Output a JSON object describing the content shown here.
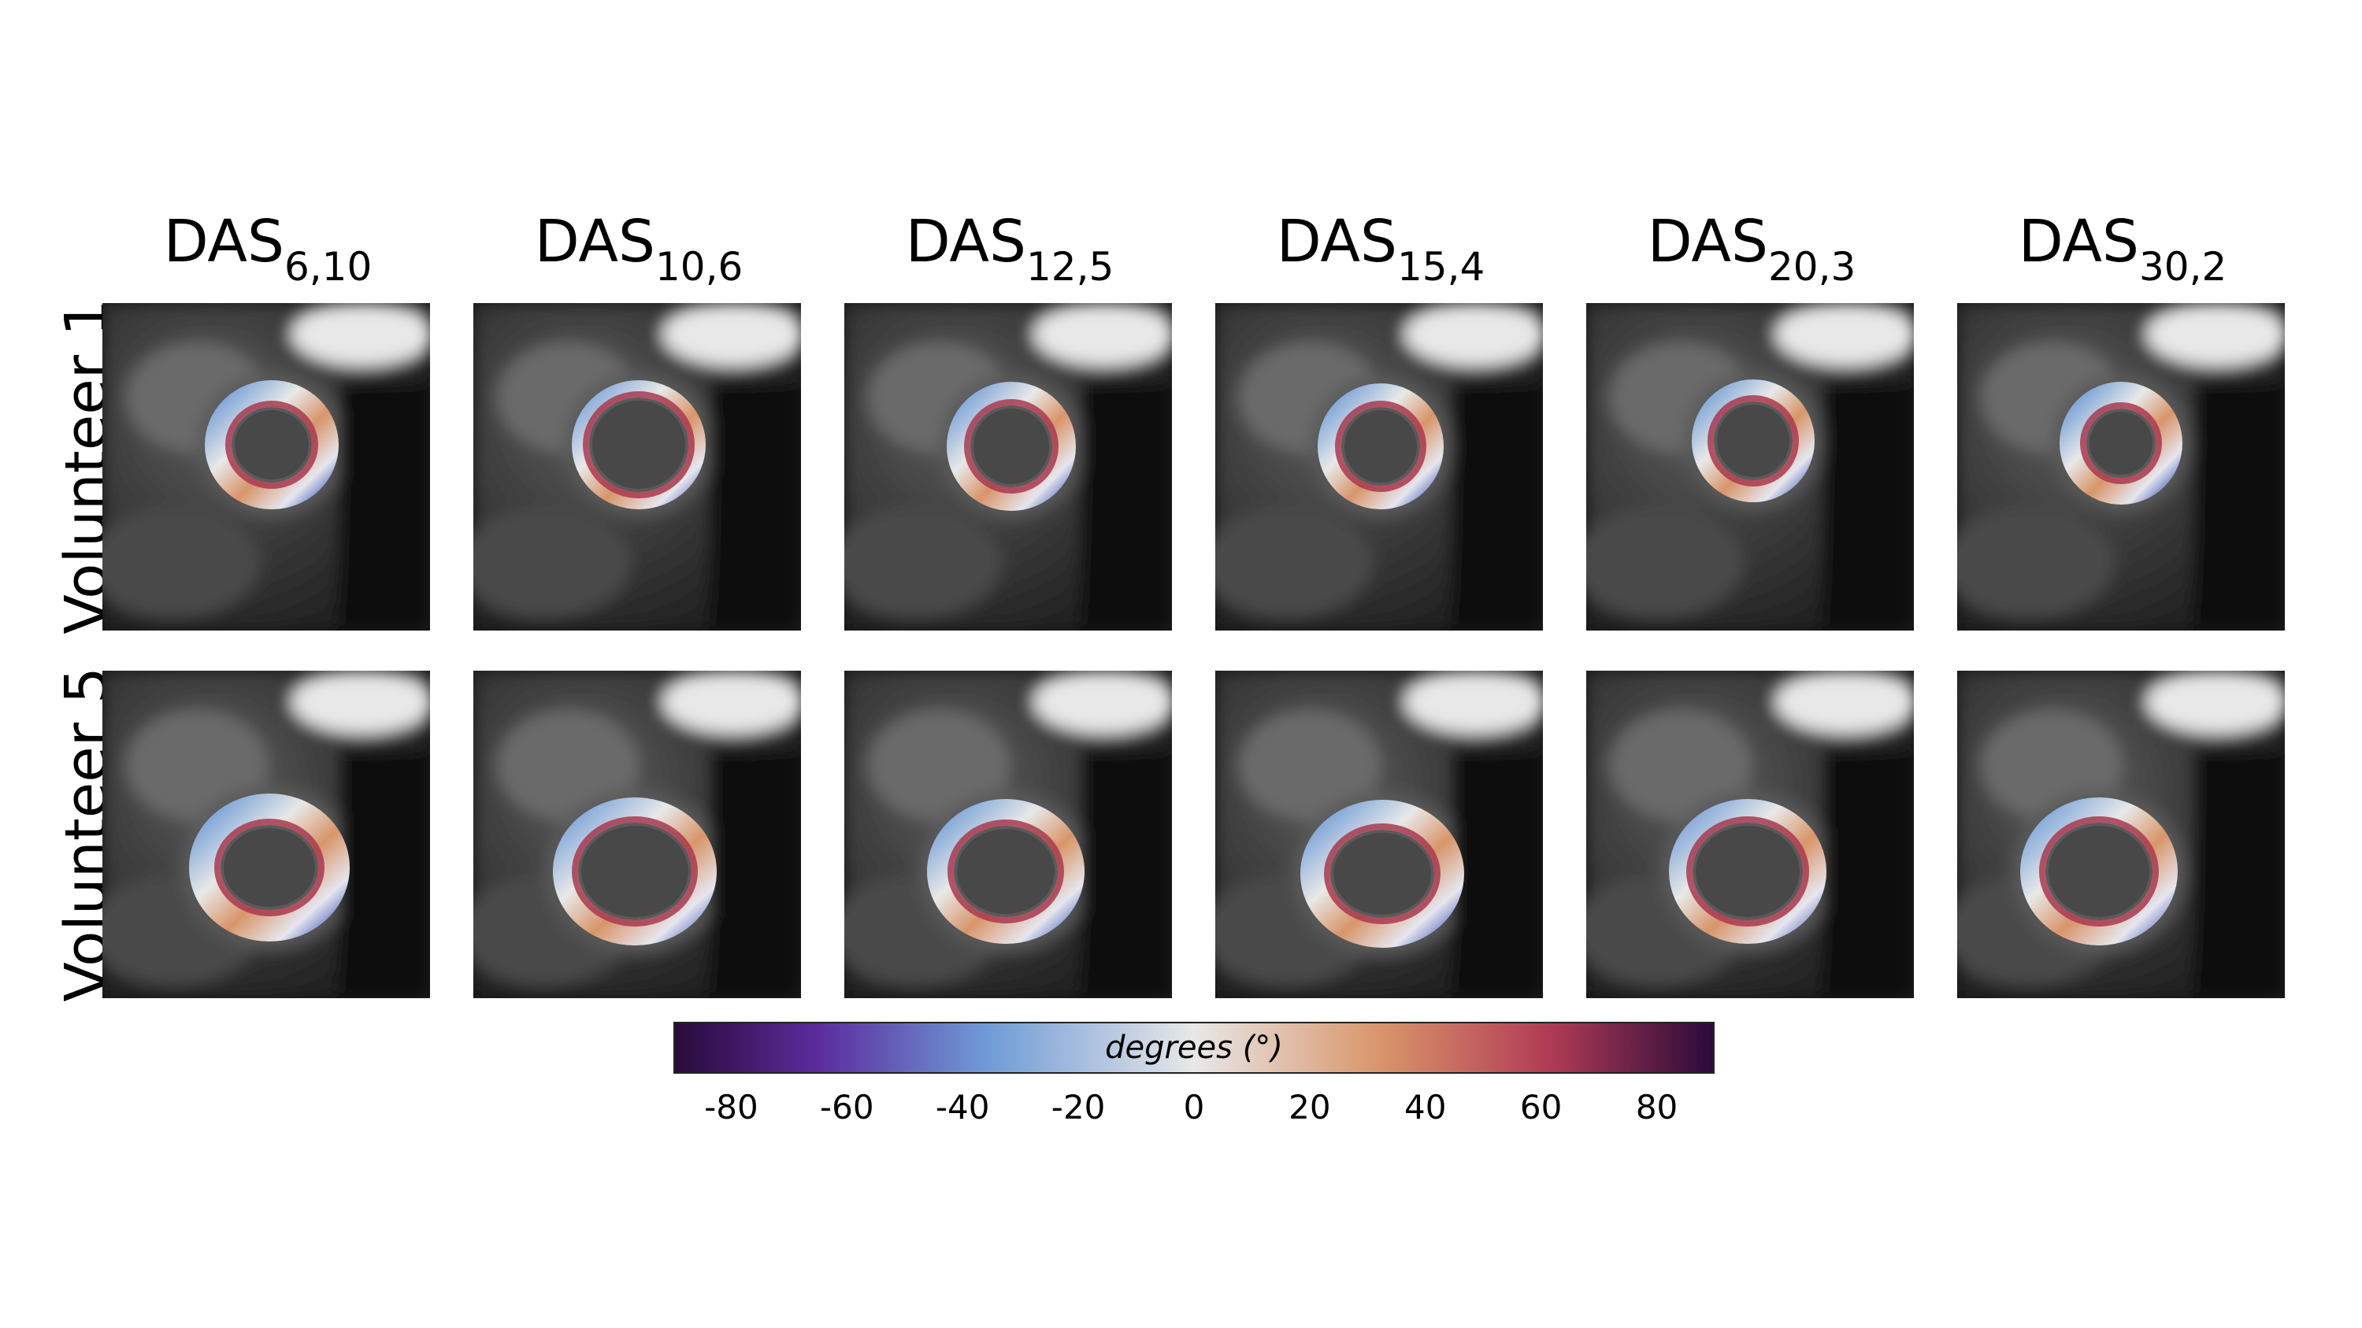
{
  "columns": [
    {
      "base": "DAS",
      "sub": "6,10"
    },
    {
      "base": "DAS",
      "sub": "10,6"
    },
    {
      "base": "DAS",
      "sub": "12,5"
    },
    {
      "base": "DAS",
      "sub": "15,4"
    },
    {
      "base": "DAS",
      "sub": "20,3"
    },
    {
      "base": "DAS",
      "sub": "30,2"
    }
  ],
  "rows": [
    {
      "label": "Volunteer 1"
    },
    {
      "label": "Volunteer 5"
    }
  ],
  "colorbar": {
    "label": "degrees (°)",
    "min": -90,
    "max": 90,
    "ticks": [
      "-80",
      "-60",
      "-40",
      "-20",
      "0",
      "20",
      "40",
      "60",
      "80"
    ],
    "colors": [
      "#2a0a3a",
      "#5b2d9e",
      "#6f9bd6",
      "#e8e8e8",
      "#d8956a",
      "#b23c55",
      "#2a0a3a"
    ]
  }
}
